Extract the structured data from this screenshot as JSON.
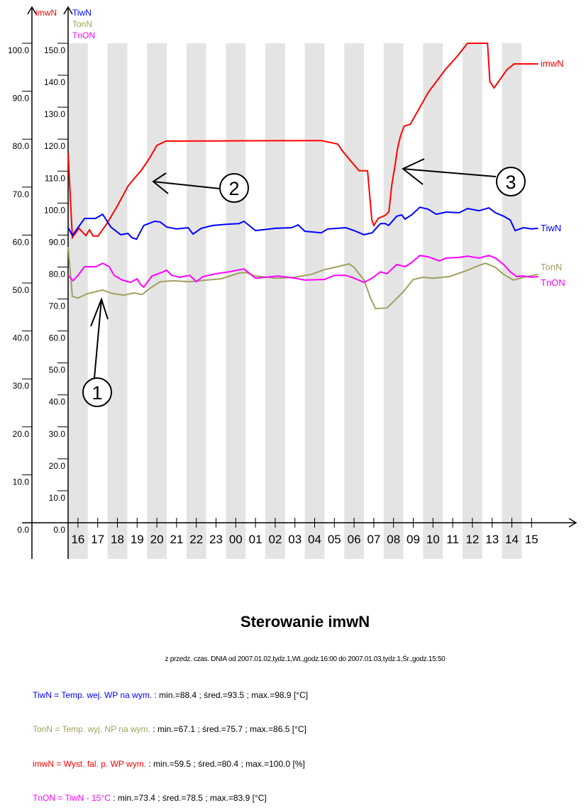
{
  "chart_data": {
    "type": "line",
    "title": "Sterowanie imwN",
    "subtitle": "z przedz. czas. DNIA od 2007.01.02,tydz.1,Wt.,godz.16:00 do 2007.01.03,tydz.1,Śr.,godz.15:50",
    "grid": "alternating hourly shaded bands",
    "axes": {
      "left": {
        "label": "imwN",
        "label_color": "#ff0000",
        "ylim": [
          0,
          100
        ],
        "ticks": [
          "0.0",
          "10.0",
          "20.0",
          "30.0",
          "40.0",
          "50.0",
          "60.0",
          "70.0",
          "80.0",
          "90.0",
          "100.0"
        ]
      },
      "right": {
        "labels": [
          {
            "text": "TiwN",
            "color": "#0000ff"
          },
          {
            "text": "TonN",
            "color": "#a0a060"
          },
          {
            "text": "TnON",
            "color": "#ff00ff"
          }
        ],
        "ylim": [
          0,
          150
        ],
        "ticks": [
          "0.0",
          "10.0",
          "20.0",
          "30.0",
          "40.0",
          "50.0",
          "60.0",
          "70.0",
          "80.0",
          "90.0",
          "100.0",
          "110.0",
          "120.0",
          "130.0",
          "140.0",
          "150.0"
        ]
      },
      "x": {
        "start": "16:00",
        "end": "15:50",
        "ticks": [
          "16",
          "17",
          "18",
          "19",
          "20",
          "21",
          "22",
          "23",
          "00",
          "01",
          "02",
          "03",
          "04",
          "05",
          "06",
          "07",
          "08",
          "09",
          "10",
          "11",
          "12",
          "13",
          "14",
          "15"
        ]
      }
    },
    "series": [
      {
        "name": "imwN",
        "axis": "left",
        "color": "#ff0000",
        "points": [
          [
            "16:00",
            77.1
          ],
          [
            "16:13",
            59.5
          ],
          [
            "16:33",
            61.4
          ],
          [
            "16:54",
            59.9
          ],
          [
            "17:05",
            61.1
          ],
          [
            "17:16",
            59.8
          ],
          [
            "17:31",
            59.8
          ],
          [
            "17:57",
            62.3
          ],
          [
            "18:30",
            66.1
          ],
          [
            "19:03",
            70.3
          ],
          [
            "19:46",
            73.8
          ],
          [
            "20:10",
            76.3
          ],
          [
            "20:30",
            78.7
          ],
          [
            "20:58",
            79.6
          ],
          [
            "04:50",
            79.7
          ],
          [
            "05:40",
            79.0
          ],
          [
            "05:55",
            77.5
          ],
          [
            "06:17",
            75.7
          ],
          [
            "06:45",
            73.4
          ],
          [
            "07:11",
            73.4
          ],
          [
            "07:24",
            63.2
          ],
          [
            "07:30",
            62.0
          ],
          [
            "07:44",
            63.5
          ],
          [
            "08:05",
            64.1
          ],
          [
            "08:16",
            64.9
          ],
          [
            "08:25",
            70.6
          ],
          [
            "08:34",
            74.3
          ],
          [
            "08:42",
            78.0
          ],
          [
            "08:51",
            80.6
          ],
          [
            "09:02",
            82.7
          ],
          [
            "09:21",
            83.1
          ],
          [
            "09:54",
            87.1
          ],
          [
            "10:16",
            89.8
          ],
          [
            "11:10",
            94.7
          ],
          [
            "11:43",
            97.2
          ],
          [
            "12:15",
            100.0
          ],
          [
            "13:16",
            100.0
          ],
          [
            "13:23",
            92.0
          ],
          [
            "13:36",
            90.7
          ],
          [
            "14:15",
            94.5
          ],
          [
            "14:37",
            95.7
          ],
          [
            "15:50",
            95.7
          ]
        ]
      },
      {
        "name": "TiwN",
        "axis": "right",
        "color": "#0000ff",
        "points": [
          [
            "16:00",
            92.3
          ],
          [
            "16:13",
            89.9
          ],
          [
            "16:50",
            95.2
          ],
          [
            "17:23",
            95.2
          ],
          [
            "17:45",
            96.5
          ],
          [
            "18:10",
            92.5
          ],
          [
            "18:40",
            90.1
          ],
          [
            "19:02",
            90.5
          ],
          [
            "19:14",
            89.2
          ],
          [
            "19:28",
            88.7
          ],
          [
            "19:50",
            93.0
          ],
          [
            "20:23",
            94.3
          ],
          [
            "20:40",
            94.1
          ],
          [
            "21:00",
            92.5
          ],
          [
            "21:30",
            91.9
          ],
          [
            "22:05",
            92.3
          ],
          [
            "22:20",
            90.3
          ],
          [
            "22:45",
            92.1
          ],
          [
            "23:20",
            93.0
          ],
          [
            "00:05",
            93.4
          ],
          [
            "00:40",
            93.6
          ],
          [
            "00:55",
            94.3
          ],
          [
            "01:30",
            91.4
          ],
          [
            "02:30",
            92.1
          ],
          [
            "03:20",
            92.3
          ],
          [
            "03:40",
            93.2
          ],
          [
            "04:00",
            91.2
          ],
          [
            "04:50",
            90.7
          ],
          [
            "05:10",
            91.9
          ],
          [
            "05:40",
            92.1
          ],
          [
            "06:05",
            92.3
          ],
          [
            "06:30",
            91.4
          ],
          [
            "07:00",
            90.1
          ],
          [
            "07:25",
            90.7
          ],
          [
            "07:50",
            93.6
          ],
          [
            "08:05",
            93.6
          ],
          [
            "08:15",
            93.0
          ],
          [
            "08:40",
            95.9
          ],
          [
            "08:55",
            96.3
          ],
          [
            "09:05",
            95.0
          ],
          [
            "09:25",
            96.3
          ],
          [
            "09:50",
            98.7
          ],
          [
            "10:15",
            98.1
          ],
          [
            "10:40",
            96.5
          ],
          [
            "11:10",
            97.2
          ],
          [
            "11:50",
            97.0
          ],
          [
            "12:15",
            98.3
          ],
          [
            "12:50",
            97.6
          ],
          [
            "13:20",
            98.5
          ],
          [
            "13:40",
            97.0
          ],
          [
            "14:05",
            95.9
          ],
          [
            "14:25",
            94.7
          ],
          [
            "14:40",
            91.4
          ],
          [
            "15:05",
            92.3
          ],
          [
            "15:30",
            91.9
          ],
          [
            "15:50",
            92.1
          ]
        ]
      },
      {
        "name": "TonN",
        "axis": "right",
        "color": "#a0a060",
        "points": [
          [
            "16:00",
            86.3
          ],
          [
            "16:13",
            70.8
          ],
          [
            "16:30",
            70.3
          ],
          [
            "17:00",
            71.7
          ],
          [
            "17:45",
            72.8
          ],
          [
            "18:15",
            71.7
          ],
          [
            "18:50",
            71.2
          ],
          [
            "19:20",
            71.9
          ],
          [
            "19:45",
            71.4
          ],
          [
            "20:10",
            73.4
          ],
          [
            "20:40",
            75.4
          ],
          [
            "21:20",
            75.7
          ],
          [
            "22:10",
            75.4
          ],
          [
            "23:00",
            75.9
          ],
          [
            "23:45",
            76.3
          ],
          [
            "00:40",
            78.1
          ],
          [
            "01:00",
            78.3
          ],
          [
            "01:30",
            77.2
          ],
          [
            "02:30",
            76.5
          ],
          [
            "03:30",
            76.8
          ],
          [
            "04:20",
            77.7
          ],
          [
            "05:00",
            79.2
          ],
          [
            "05:40",
            80.1
          ],
          [
            "06:15",
            81.0
          ],
          [
            "06:30",
            79.9
          ],
          [
            "07:00",
            75.9
          ],
          [
            "07:20",
            70.3
          ],
          [
            "07:35",
            67.0
          ],
          [
            "08:10",
            67.2
          ],
          [
            "08:30",
            69.2
          ],
          [
            "09:00",
            72.3
          ],
          [
            "09:30",
            76.1
          ],
          [
            "10:00",
            76.8
          ],
          [
            "10:30",
            76.5
          ],
          [
            "11:20",
            77.0
          ],
          [
            "11:50",
            78.1
          ],
          [
            "12:15",
            79.0
          ],
          [
            "12:50",
            80.5
          ],
          [
            "13:10",
            81.2
          ],
          [
            "13:40",
            79.9
          ],
          [
            "14:05",
            77.7
          ],
          [
            "14:35",
            75.9
          ],
          [
            "15:05",
            76.8
          ],
          [
            "15:50",
            77.7
          ]
        ]
      },
      {
        "name": "TnON",
        "axis": "right",
        "color": "#ff00ff",
        "points": [
          [
            "16:00",
            77.4
          ],
          [
            "16:15",
            75.7
          ],
          [
            "16:30",
            77.4
          ],
          [
            "16:50",
            80.1
          ],
          [
            "17:25",
            80.1
          ],
          [
            "17:45",
            81.2
          ],
          [
            "18:05",
            80.1
          ],
          [
            "18:20",
            77.4
          ],
          [
            "18:45",
            75.9
          ],
          [
            "19:10",
            75.2
          ],
          [
            "19:30",
            76.3
          ],
          [
            "19:40",
            74.6
          ],
          [
            "19:50",
            73.7
          ],
          [
            "20:15",
            77.2
          ],
          [
            "20:45",
            78.3
          ],
          [
            "21:00",
            79.0
          ],
          [
            "21:15",
            77.4
          ],
          [
            "21:40",
            76.8
          ],
          [
            "22:10",
            77.4
          ],
          [
            "22:30",
            75.4
          ],
          [
            "22:50",
            77.0
          ],
          [
            "23:30",
            77.9
          ],
          [
            "00:10",
            78.5
          ],
          [
            "00:55",
            79.4
          ],
          [
            "01:30",
            76.5
          ],
          [
            "02:40",
            77.2
          ],
          [
            "03:30",
            76.5
          ],
          [
            "04:00",
            75.9
          ],
          [
            "05:00",
            76.1
          ],
          [
            "05:30",
            77.4
          ],
          [
            "06:05",
            77.4
          ],
          [
            "06:30",
            76.5
          ],
          [
            "07:00",
            75.2
          ],
          [
            "07:25",
            76.5
          ],
          [
            "07:50",
            78.5
          ],
          [
            "08:10",
            77.9
          ],
          [
            "08:40",
            80.8
          ],
          [
            "09:05",
            80.1
          ],
          [
            "09:25",
            81.4
          ],
          [
            "09:50",
            83.6
          ],
          [
            "10:15",
            83.2
          ],
          [
            "10:50",
            81.9
          ],
          [
            "11:10",
            82.8
          ],
          [
            "11:50",
            83.0
          ],
          [
            "12:15",
            83.4
          ],
          [
            "12:50",
            82.8
          ],
          [
            "13:20",
            83.6
          ],
          [
            "13:40",
            82.8
          ],
          [
            "14:05",
            80.8
          ],
          [
            "14:25",
            78.5
          ],
          [
            "14:45",
            77.0
          ],
          [
            "15:05",
            77.2
          ],
          [
            "15:30",
            76.8
          ],
          [
            "15:50",
            77.0
          ]
        ]
      }
    ],
    "annotations": [
      "1",
      "2",
      "3"
    ],
    "legend": [
      {
        "name": "TiwN = Temp. wej. WP na wym.",
        "stats": " : min.=88.4 ; śred.=93.5 ; max.=98.9 [°C]",
        "color": "#0000ff"
      },
      {
        "name": "TonN = Temp. wyj. NP na wym.",
        "stats": " : min.=67.1 ; śred.=75.7 ; max.=86.5 [°C]",
        "color": "#a0a060"
      },
      {
        "name": "imwN = Wyst. fal. p. WP wym.",
        "stats": " : min.=59.5 ; śred.=80.4 ; max.=100.0 [%]",
        "color": "#ff0000"
      },
      {
        "name": "TnON = TiwN - 15°C",
        "stats": " : min.=73.4 ; śred.=78.5 ; max.=83.9 [°C]",
        "color": "#ff00ff"
      }
    ]
  }
}
